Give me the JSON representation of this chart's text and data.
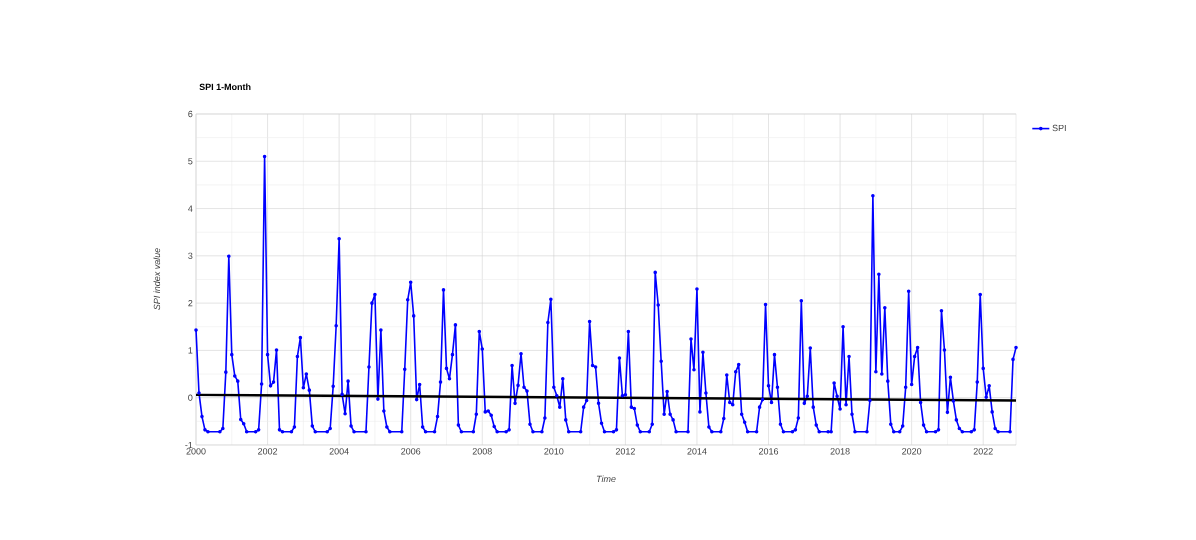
{
  "chart_data": {
    "type": "line",
    "title": "SPI 1-Month",
    "xlabel": "Time",
    "ylabel": "SPI index value",
    "x": [
      "2000-01",
      "2000-02",
      "2000-03",
      "2000-04",
      "2000-05",
      "2000-09",
      "2000-10",
      "2000-11",
      "2000-12",
      "2001-01",
      "2001-02",
      "2001-03",
      "2001-04",
      "2001-05",
      "2001-06",
      "2001-09",
      "2001-10",
      "2001-11",
      "2001-12",
      "2002-01",
      "2002-02",
      "2002-03",
      "2002-04",
      "2002-05",
      "2002-06",
      "2002-09",
      "2002-10",
      "2002-11",
      "2002-12",
      "2003-01",
      "2003-02",
      "2003-03",
      "2003-04",
      "2003-05",
      "2003-09",
      "2003-10",
      "2003-11",
      "2003-12",
      "2004-01",
      "2004-02",
      "2004-03",
      "2004-04",
      "2004-05",
      "2004-06",
      "2004-10",
      "2004-11",
      "2004-12",
      "2005-01",
      "2005-02",
      "2005-03",
      "2005-04",
      "2005-05",
      "2005-06",
      "2005-10",
      "2005-11",
      "2005-12",
      "2006-01",
      "2006-02",
      "2006-03",
      "2006-04",
      "2006-05",
      "2006-06",
      "2006-09",
      "2006-10",
      "2006-11",
      "2006-12",
      "2007-01",
      "2007-02",
      "2007-03",
      "2007-04",
      "2007-05",
      "2007-06",
      "2007-10",
      "2007-11",
      "2007-12",
      "2008-01",
      "2008-02",
      "2008-03",
      "2008-04",
      "2008-05",
      "2008-06",
      "2008-09",
      "2008-10",
      "2008-11",
      "2008-12",
      "2009-01",
      "2009-02",
      "2009-03",
      "2009-04",
      "2009-05",
      "2009-06",
      "2009-09",
      "2009-10",
      "2009-11",
      "2009-12",
      "2010-01",
      "2010-02",
      "2010-03",
      "2010-04",
      "2010-05",
      "2010-06",
      "2010-10",
      "2010-11",
      "2010-12",
      "2011-01",
      "2011-02",
      "2011-03",
      "2011-04",
      "2011-05",
      "2011-06",
      "2011-09",
      "2011-10",
      "2011-11",
      "2011-12",
      "2012-01",
      "2012-02",
      "2012-03",
      "2012-04",
      "2012-05",
      "2012-06",
      "2012-09",
      "2012-10",
      "2012-11",
      "2012-12",
      "2013-01",
      "2013-02",
      "2013-03",
      "2013-04",
      "2013-05",
      "2013-06",
      "2013-10",
      "2013-11",
      "2013-12",
      "2014-01",
      "2014-02",
      "2014-03",
      "2014-04",
      "2014-05",
      "2014-06",
      "2014-09",
      "2014-10",
      "2014-11",
      "2014-12",
      "2015-01",
      "2015-02",
      "2015-03",
      "2015-04",
      "2015-05",
      "2015-06",
      "2015-09",
      "2015-10",
      "2015-11",
      "2015-12",
      "2016-01",
      "2016-02",
      "2016-03",
      "2016-04",
      "2016-05",
      "2016-06",
      "2016-09",
      "2016-10",
      "2016-11",
      "2016-12",
      "2017-01",
      "2017-02",
      "2017-03",
      "2017-04",
      "2017-05",
      "2017-06",
      "2017-09",
      "2017-10",
      "2017-11",
      "2017-12",
      "2018-01",
      "2018-02",
      "2018-03",
      "2018-04",
      "2018-05",
      "2018-06",
      "2018-10",
      "2018-11",
      "2018-12",
      "2019-01",
      "2019-02",
      "2019-03",
      "2019-04",
      "2019-05",
      "2019-06",
      "2019-07",
      "2019-09",
      "2019-10",
      "2019-11",
      "2019-12",
      "2020-01",
      "2020-02",
      "2020-03",
      "2020-04",
      "2020-05",
      "2020-06",
      "2020-09",
      "2020-10",
      "2020-11",
      "2020-12",
      "2021-01",
      "2021-02",
      "2021-03",
      "2021-04",
      "2021-05",
      "2021-06",
      "2021-09",
      "2021-10",
      "2021-11",
      "2021-12",
      "2022-01",
      "2022-02",
      "2022-03",
      "2022-04",
      "2022-05",
      "2022-06",
      "2022-10",
      "2022-11",
      "2022-12"
    ],
    "series": [
      {
        "name": "SPI",
        "color": "#0000ff",
        "values": [
          1.43,
          0.1,
          -0.4,
          -0.68,
          -0.72,
          -0.72,
          -0.65,
          0.54,
          2.99,
          0.91,
          0.46,
          0.35,
          -0.46,
          -0.55,
          -0.72,
          -0.72,
          -0.68,
          0.29,
          5.1,
          0.91,
          0.25,
          0.33,
          1.01,
          -0.68,
          -0.72,
          -0.72,
          -0.62,
          0.87,
          1.27,
          0.21,
          0.5,
          0.16,
          -0.6,
          -0.72,
          -0.72,
          -0.65,
          0.24,
          1.52,
          3.36,
          0.07,
          -0.34,
          0.35,
          -0.6,
          -0.72,
          -0.72,
          0.65,
          2.0,
          2.18,
          -0.03,
          1.43,
          -0.28,
          -0.62,
          -0.72,
          -0.72,
          0.6,
          2.07,
          2.44,
          1.73,
          -0.04,
          0.28,
          -0.62,
          -0.72,
          -0.72,
          -0.4,
          0.33,
          2.28,
          0.62,
          0.4,
          0.91,
          1.54,
          -0.58,
          -0.72,
          -0.72,
          -0.35,
          1.4,
          1.03,
          -0.3,
          -0.28,
          -0.37,
          -0.61,
          -0.72,
          -0.72,
          -0.68,
          0.68,
          -0.12,
          0.26,
          0.93,
          0.22,
          0.14,
          -0.56,
          -0.72,
          -0.72,
          -0.43,
          1.59,
          2.08,
          0.22,
          0.04,
          -0.2,
          0.4,
          -0.47,
          -0.72,
          -0.72,
          -0.2,
          -0.06,
          1.61,
          0.68,
          0.65,
          -0.12,
          -0.54,
          -0.72,
          -0.72,
          -0.68,
          0.84,
          0.04,
          0.06,
          1.4,
          -0.2,
          -0.23,
          -0.58,
          -0.72,
          -0.72,
          -0.56,
          2.65,
          1.96,
          0.77,
          -0.35,
          0.13,
          -0.35,
          -0.47,
          -0.72,
          -0.72,
          1.24,
          0.59,
          2.3,
          -0.3,
          0.96,
          0.1,
          -0.62,
          -0.72,
          -0.72,
          -0.44,
          0.48,
          -0.1,
          -0.15,
          0.55,
          0.7,
          -0.35,
          -0.52,
          -0.72,
          -0.72,
          -0.2,
          -0.04,
          1.97,
          0.25,
          -0.1,
          0.91,
          0.22,
          -0.56,
          -0.72,
          -0.72,
          -0.68,
          -0.43,
          2.05,
          -0.12,
          0.03,
          1.05,
          -0.2,
          -0.58,
          -0.72,
          -0.72,
          -0.72,
          0.31,
          0.03,
          -0.24,
          1.5,
          -0.15,
          0.87,
          -0.35,
          -0.72,
          -0.72,
          -0.06,
          4.27,
          0.55,
          2.61,
          0.5,
          1.9,
          0.35,
          -0.56,
          -0.72,
          -0.72,
          -0.6,
          0.22,
          2.25,
          0.28,
          0.87,
          1.06,
          -0.1,
          -0.58,
          -0.72,
          -0.72,
          -0.68,
          1.84,
          1.01,
          -0.31,
          0.43,
          -0.07,
          -0.47,
          -0.65,
          -0.72,
          -0.72,
          -0.68,
          0.33,
          2.18,
          0.62,
          0.01,
          0.25,
          -0.3,
          -0.65,
          -0.72,
          -0.72,
          0.81,
          1.06
        ]
      },
      {
        "type": "line",
        "color": "#000000",
        "marker": "none",
        "x": [
          "2000-01",
          "2022-12"
        ],
        "values": [
          0.06,
          -0.06
        ]
      }
    ],
    "xlim": [
      "2000-01",
      "2022-12"
    ],
    "xticks": [
      "2000",
      "2002",
      "2004",
      "2006",
      "2008",
      "2010",
      "2012",
      "2014",
      "2016",
      "2018",
      "2020",
      "2022"
    ],
    "ylim": [
      -1,
      6
    ],
    "yticks": [
      -1,
      0,
      1,
      2,
      3,
      4,
      5,
      6
    ],
    "grid": true,
    "legend": "top right",
    "marker": "circle",
    "line_style": "solid"
  }
}
